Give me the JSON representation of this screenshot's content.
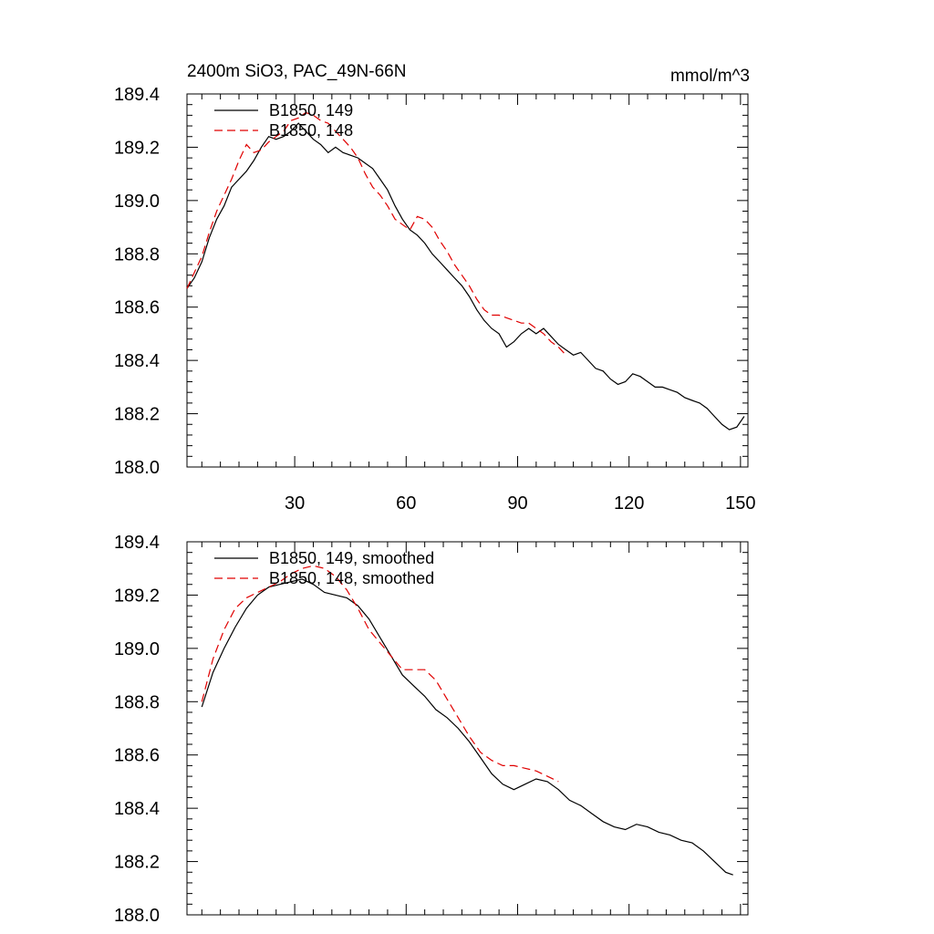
{
  "colors": {
    "run149": "#000000",
    "run148": "#e00000",
    "axis": "#000000",
    "background": "#ffffff"
  },
  "chart_data": [
    {
      "type": "line",
      "title": "2400m SiO3, PAC_49N-66N",
      "units": "mmol/m^3",
      "xlim": [
        1,
        152
      ],
      "ylim": [
        188.0,
        189.4
      ],
      "xticks": [
        30,
        60,
        90,
        120,
        150
      ],
      "xtick_labels": [
        "30",
        "60",
        "90",
        "120",
        "150"
      ],
      "yticks": [
        188.0,
        188.2,
        188.4,
        188.6,
        188.8,
        189.0,
        189.2,
        189.4
      ],
      "ytick_labels": [
        "188.0",
        "188.2",
        "188.4",
        "188.6",
        "188.8",
        "189.0",
        "189.2",
        "189.4"
      ],
      "legend": [
        "B1850, 149",
        "B1850, 148"
      ],
      "legend_position": "top-left",
      "series": [
        {
          "name": "B1850, 149",
          "style": "solid",
          "x": [
            1,
            3,
            5,
            7,
            9,
            11,
            13,
            15,
            17,
            19,
            21,
            23,
            25,
            27,
            29,
            31,
            33,
            35,
            37,
            39,
            41,
            43,
            45,
            47,
            49,
            51,
            53,
            55,
            57,
            59,
            61,
            63,
            65,
            67,
            69,
            71,
            73,
            75,
            77,
            79,
            81,
            83,
            85,
            87,
            89,
            91,
            93,
            95,
            97,
            99,
            101,
            103,
            105,
            107,
            109,
            111,
            113,
            115,
            117,
            119,
            121,
            123,
            125,
            127,
            129,
            131,
            133,
            135,
            137,
            139,
            141,
            143,
            145,
            147,
            149,
            151
          ],
          "values": [
            188.67,
            188.71,
            188.77,
            188.86,
            188.93,
            188.98,
            189.05,
            189.08,
            189.11,
            189.15,
            189.2,
            189.24,
            189.23,
            189.24,
            189.26,
            189.29,
            189.26,
            189.23,
            189.21,
            189.18,
            189.2,
            189.18,
            189.17,
            189.16,
            189.14,
            189.12,
            189.08,
            189.04,
            188.98,
            188.93,
            188.89,
            188.87,
            188.84,
            188.8,
            188.77,
            188.74,
            188.71,
            188.68,
            188.64,
            188.59,
            188.55,
            188.52,
            188.5,
            188.45,
            188.47,
            188.5,
            188.52,
            188.5,
            188.52,
            188.49,
            188.46,
            188.44,
            188.42,
            188.43,
            188.4,
            188.37,
            188.36,
            188.33,
            188.31,
            188.32,
            188.35,
            188.34,
            188.32,
            188.3,
            188.3,
            188.29,
            188.28,
            188.26,
            188.25,
            188.24,
            188.22,
            188.19,
            188.16,
            188.14,
            188.15,
            188.19
          ]
        },
        {
          "name": "B1850, 148",
          "style": "dashed",
          "x": [
            1,
            3,
            5,
            7,
            9,
            11,
            13,
            15,
            17,
            19,
            21,
            23,
            25,
            27,
            29,
            31,
            33,
            35,
            37,
            39,
            41,
            43,
            45,
            47,
            49,
            51,
            53,
            55,
            57,
            59,
            61,
            63,
            65,
            67,
            69,
            71,
            73,
            75,
            77,
            79,
            81,
            83,
            85,
            87,
            89,
            91,
            93,
            95,
            97,
            99,
            101,
            103
          ],
          "values": [
            188.67,
            188.73,
            188.79,
            188.88,
            188.96,
            189.02,
            189.08,
            189.15,
            189.21,
            189.18,
            189.19,
            189.22,
            189.24,
            189.26,
            189.3,
            189.31,
            189.33,
            189.32,
            189.3,
            189.29,
            189.26,
            189.23,
            189.2,
            189.16,
            189.1,
            189.05,
            189.02,
            188.98,
            188.93,
            188.91,
            188.89,
            188.94,
            188.93,
            188.9,
            188.85,
            188.81,
            188.76,
            188.72,
            188.68,
            188.63,
            188.59,
            188.57,
            188.57,
            188.56,
            188.55,
            188.54,
            188.54,
            188.52,
            188.5,
            188.47,
            188.45,
            188.42
          ]
        }
      ]
    },
    {
      "type": "line",
      "title": "",
      "units": "",
      "xlim": [
        1,
        152
      ],
      "ylim": [
        188.0,
        189.4
      ],
      "xticks": [
        30,
        60,
        90,
        120,
        150
      ],
      "xtick_labels": [],
      "yticks": [
        188.0,
        188.2,
        188.4,
        188.6,
        188.8,
        189.0,
        189.2,
        189.4
      ],
      "ytick_labels": [
        "188.0",
        "188.2",
        "188.4",
        "188.6",
        "188.8",
        "189.0",
        "189.2",
        "189.4"
      ],
      "legend": [
        "B1850, 149, smoothed",
        "B1850, 148, smoothed"
      ],
      "legend_position": "top-left",
      "series": [
        {
          "name": "B1850, 149, smoothed",
          "style": "solid",
          "x": [
            5,
            8,
            11,
            14,
            17,
            20,
            23,
            26,
            29,
            32,
            35,
            38,
            41,
            44,
            47,
            50,
            53,
            56,
            59,
            62,
            65,
            68,
            71,
            74,
            77,
            80,
            83,
            86,
            89,
            92,
            95,
            98,
            101,
            104,
            107,
            110,
            113,
            116,
            119,
            122,
            125,
            128,
            131,
            134,
            137,
            140,
            143,
            146,
            148
          ],
          "values": [
            188.78,
            188.91,
            189.0,
            189.08,
            189.15,
            189.2,
            189.23,
            189.24,
            189.25,
            189.26,
            189.24,
            189.21,
            189.2,
            189.19,
            189.16,
            189.11,
            189.04,
            188.97,
            188.9,
            188.86,
            188.82,
            188.77,
            188.74,
            188.7,
            188.65,
            188.59,
            188.53,
            188.49,
            188.47,
            188.49,
            188.51,
            188.5,
            188.47,
            188.43,
            188.41,
            188.38,
            188.35,
            188.33,
            188.32,
            188.34,
            188.33,
            188.31,
            188.3,
            188.28,
            188.27,
            188.24,
            188.2,
            188.16,
            188.15
          ]
        },
        {
          "name": "B1850, 148, smoothed",
          "style": "dashed",
          "x": [
            5,
            8,
            11,
            14,
            17,
            20,
            23,
            26,
            29,
            32,
            35,
            38,
            41,
            44,
            47,
            50,
            53,
            56,
            59,
            62,
            65,
            68,
            71,
            74,
            77,
            80,
            83,
            86,
            89,
            92,
            95,
            98,
            101
          ],
          "values": [
            188.8,
            188.96,
            189.07,
            189.15,
            189.19,
            189.21,
            189.23,
            189.25,
            189.28,
            189.3,
            189.31,
            189.3,
            189.27,
            189.22,
            189.15,
            189.07,
            189.02,
            188.97,
            188.92,
            188.92,
            188.92,
            188.88,
            188.81,
            188.74,
            188.67,
            188.61,
            188.58,
            188.56,
            188.56,
            188.55,
            188.54,
            188.52,
            188.5
          ]
        }
      ]
    }
  ]
}
